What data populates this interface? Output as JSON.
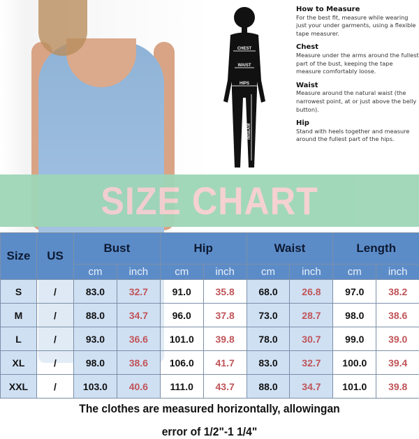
{
  "guide": {
    "silhouette_labels": [
      "CHEST",
      "WAIST",
      "HIPS",
      "INSEAM"
    ],
    "sections": [
      {
        "title": "How to Measure",
        "text": "For the best fit, measure while wearing just your under garments, using a flexible tape measurer."
      },
      {
        "title": "Chest",
        "text": "Measure under the arms around the fullest part of the bust, keeping the tape measure comfortably loose."
      },
      {
        "title": "Waist",
        "text": "Measure around the natural waist (the narrowest point, at or just above the belly button)."
      },
      {
        "title": "Hip",
        "text": "Stand with heels together and measure around the fullest part of the hips."
      }
    ]
  },
  "banner": "SIZE CHART",
  "table": {
    "headers": {
      "size": "Size",
      "us": "US",
      "groups": [
        "Bust",
        "Hip",
        "Waist",
        "Length"
      ],
      "units": [
        "cm",
        "inch"
      ]
    },
    "rows": [
      {
        "size": "S",
        "us": "/",
        "values": [
          "83.0",
          "32.7",
          "91.0",
          "35.8",
          "68.0",
          "26.8",
          "97.0",
          "38.2"
        ]
      },
      {
        "size": "M",
        "us": "/",
        "values": [
          "88.0",
          "34.7",
          "96.0",
          "37.8",
          "73.0",
          "28.7",
          "98.0",
          "38.6"
        ]
      },
      {
        "size": "L",
        "us": "/",
        "values": [
          "93.0",
          "36.6",
          "101.0",
          "39.8",
          "78.0",
          "30.7",
          "99.0",
          "39.0"
        ]
      },
      {
        "size": "XL",
        "us": "/",
        "values": [
          "98.0",
          "38.6",
          "106.0",
          "41.7",
          "83.0",
          "32.7",
          "100.0",
          "39.4"
        ]
      },
      {
        "size": "XXL",
        "us": "/",
        "values": [
          "103.0",
          "40.6",
          "111.0",
          "43.7",
          "88.0",
          "34.7",
          "101.0",
          "39.8"
        ]
      }
    ]
  },
  "footer": [
    "The clothes are measured horizontally, allowingan",
    "error of 1/2\"-1 1/4\""
  ],
  "colors": {
    "header": "#5c8cc8",
    "inch_text": "#c05458",
    "banner": "#9ed6b7",
    "banner_text": "#f5cfcf"
  }
}
